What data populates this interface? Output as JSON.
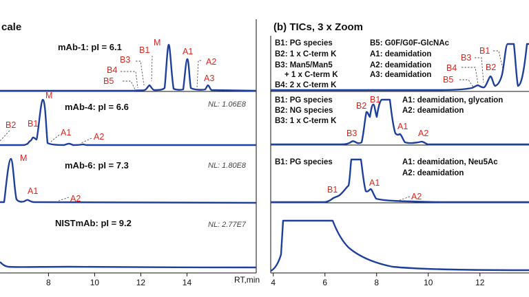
{
  "chart_data": [
    {
      "type": "line",
      "title": "cale",
      "x_unit_label": "RT,min",
      "xlim": [
        5.9,
        17.0
      ],
      "x_ticks": [
        8,
        10,
        12,
        14
      ],
      "x_tick_labels": [
        "8",
        "10",
        "12",
        "14"
      ],
      "panels": [
        {
          "sample_label": "mAb-1: pI = 6.1",
          "nl": "",
          "peaks": [
            {
              "label": "M",
              "rt": 12.95,
              "rel": 1.0
            },
            {
              "label": "A1",
              "rt": 13.55,
              "rel": 0.72
            },
            {
              "label": "A2",
              "rt": 13.9,
              "rel": 0.05
            },
            {
              "label": "A3",
              "rt": 14.35,
              "rel": 0.13
            },
            {
              "label": "B1",
              "rt": 12.2,
              "rel": 0.12
            },
            {
              "label": "B3",
              "rt": 11.95,
              "rel": 0.05
            },
            {
              "label": "B4",
              "rt": 11.7,
              "rel": 0.03
            },
            {
              "label": "B5",
              "rt": 11.45,
              "rel": 0.02
            }
          ]
        },
        {
          "sample_label": "mAb-4: pI = 6.6",
          "nl": "NL: 1.06E8",
          "peaks": [
            {
              "label": "M",
              "rt": 8.3,
              "rel": 1.0
            },
            {
              "label": "B1",
              "rt": 7.95,
              "rel": 0.3
            },
            {
              "label": "B2",
              "rt": 7.7,
              "rel": 0.22
            },
            {
              "label": "A1",
              "rt": 8.7,
              "rel": 0.04
            },
            {
              "label": "A2",
              "rt": 9.55,
              "rel": 0.02
            }
          ]
        },
        {
          "sample_label": "mAb-6: pI = 7.3",
          "nl": "NL: 1.80E8",
          "peaks": [
            {
              "label": "M",
              "rt": 7.15,
              "rel": 1.0
            },
            {
              "label": "A1",
              "rt": 7.75,
              "rel": 0.05
            },
            {
              "label": "A2",
              "rt": 8.8,
              "rel": 0.01
            }
          ]
        },
        {
          "sample_label": "NISTmAb: pI = 9.2",
          "nl": "NL: 2.77E7",
          "peaks": []
        }
      ]
    },
    {
      "type": "line",
      "title": "(b) TICs, 3 x Zoom",
      "xlim": [
        3.9,
        13.9
      ],
      "x_ticks": [
        4,
        6,
        8,
        10,
        12
      ],
      "x_tick_labels": [
        "4",
        "6",
        "8",
        "10",
        "12"
      ],
      "panels": [
        {
          "legend_left": [
            "B1: PG species",
            "B2: 1 x C-term K",
            "B3: Man5/Man5",
            "+ 1 x C-term K",
            "B4: 2 x C-term K"
          ],
          "legend_right": [
            "B5: G0F/G0F-GlcNAc",
            "A1: deamidation",
            "A2: deamidation",
            "A3: deamidation"
          ],
          "peaks": [
            {
              "label": "B1",
              "rt": 12.6,
              "rel": 1.3
            },
            {
              "label": "B2",
              "rt": 12.2,
              "rel": 0.3
            },
            {
              "label": "B3",
              "rt": 11.95,
              "rel": 0.12
            },
            {
              "label": "B4",
              "rt": 11.7,
              "rel": 0.07
            },
            {
              "label": "B5",
              "rt": 11.45,
              "rel": 0.05
            }
          ]
        },
        {
          "legend_left": [
            "B1: PG species",
            "B2: NG species",
            "B3: 1 x C-term K"
          ],
          "legend_right": [
            "A1: deamidation, glycation",
            "A2: deamidation"
          ],
          "peaks": [
            {
              "label": "B1",
              "rt": 7.95,
              "rel": 0.88
            },
            {
              "label": "B2",
              "rt": 7.7,
              "rel": 0.75
            },
            {
              "label": "B3",
              "rt": 7.1,
              "rel": 0.1
            },
            {
              "label": "A1",
              "rt": 8.8,
              "rel": 0.12
            },
            {
              "label": "A2",
              "rt": 9.6,
              "rel": 0.05
            }
          ]
        },
        {
          "legend_left": [
            "B1: PG species"
          ],
          "legend_right": [
            "A1: deamidation, Neu5Ac",
            "A2: deamidation"
          ],
          "peaks": [
            {
              "label": "B1",
              "rt": 6.6,
              "rel": 0.15
            },
            {
              "label": "A1",
              "rt": 7.75,
              "rel": 0.25
            },
            {
              "label": "A2",
              "rt": 8.7,
              "rel": 0.02
            }
          ]
        },
        {
          "legend_left": [],
          "legend_right": [],
          "peaks": []
        }
      ]
    }
  ]
}
